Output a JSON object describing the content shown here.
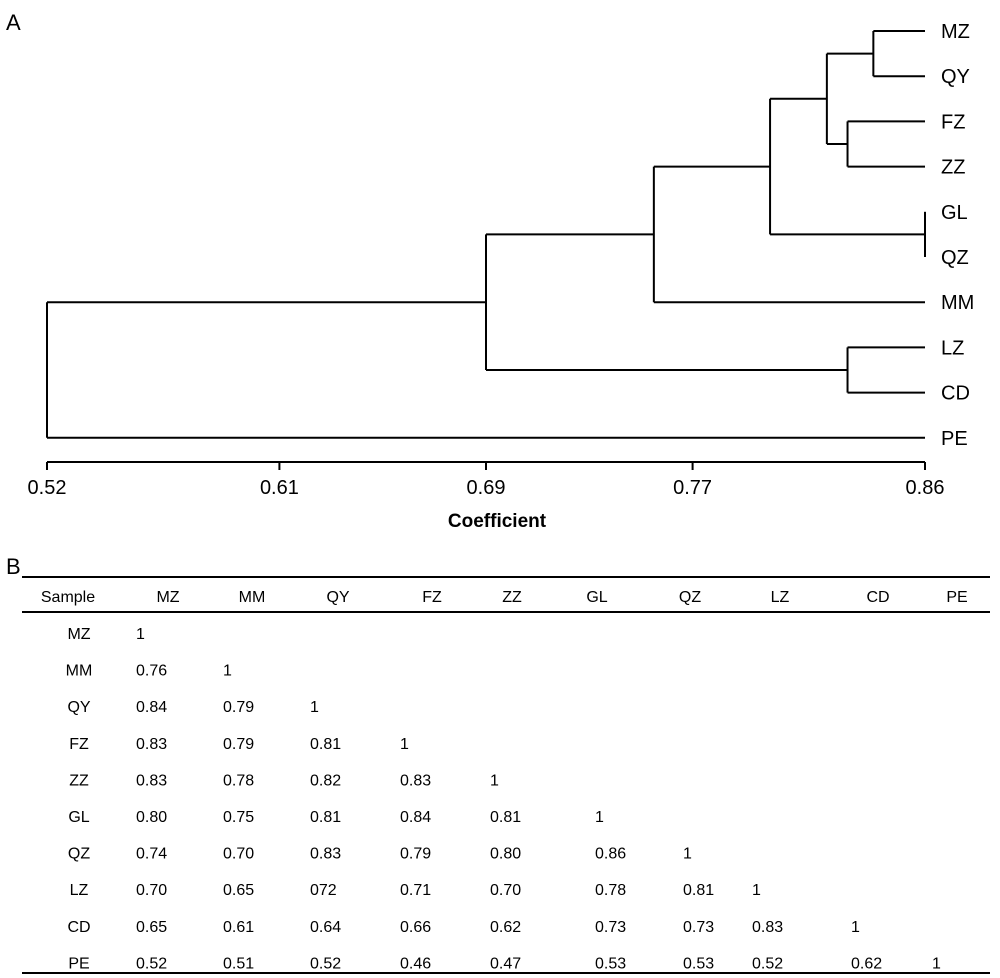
{
  "figure": {
    "panel_a_label": "A",
    "panel_b_label": "B"
  },
  "chart_data": [
    {
      "type": "dendrogram",
      "title": "",
      "xlabel": "Coefficient",
      "xlim": [
        0.52,
        0.86
      ],
      "xticks": [
        0.52,
        0.61,
        0.69,
        0.77,
        0.86
      ],
      "xtick_labels": [
        "0.52",
        "0.61",
        "0.69",
        "0.77",
        "0.86"
      ],
      "leaves": [
        "MZ",
        "QY",
        "FZ",
        "ZZ",
        "GL",
        "QZ",
        "MM",
        "LZ",
        "CD",
        "PE"
      ],
      "merges": [
        {
          "a": "GL",
          "b": "QZ",
          "height": 0.86
        },
        {
          "a": "MZ",
          "b": "QY",
          "height": 0.84
        },
        {
          "a": "FZ",
          "b": "ZZ",
          "height": 0.83
        },
        {
          "a": "LZ",
          "b": "CD",
          "height": 0.83
        },
        {
          "a": "MZ-QY",
          "b": "FZ-ZZ",
          "height": 0.822
        },
        {
          "a": "MZ-QY-FZ-ZZ",
          "b": "GL-QZ",
          "height": 0.8
        },
        {
          "a": "MZ-QY-FZ-ZZ-GL-QZ",
          "b": "MM",
          "height": 0.755
        },
        {
          "a": "MZ-QY-FZ-ZZ-GL-QZ-MM",
          "b": "LZ-CD",
          "height": 0.69
        },
        {
          "a": "MZ-QY-FZ-ZZ-GL-QZ-MM-LZ-CD",
          "b": "PE",
          "height": 0.52
        }
      ]
    },
    {
      "type": "table",
      "columns": [
        "Sample",
        "MZ",
        "MM",
        "QY",
        "FZ",
        "ZZ",
        "GL",
        "QZ",
        "LZ",
        "CD",
        "PE"
      ],
      "rows": [
        [
          "MZ",
          "1"
        ],
        [
          "MM",
          "0.76",
          "1"
        ],
        [
          "QY",
          "0.84",
          "0.79",
          "1"
        ],
        [
          "FZ",
          "0.83",
          "0.79",
          "0.81",
          "1"
        ],
        [
          "ZZ",
          "0.83",
          "0.78",
          "0.82",
          "0.83",
          "1"
        ],
        [
          "GL",
          "0.80",
          "0.75",
          "0.81",
          "0.84",
          "0.81",
          "1"
        ],
        [
          "QZ",
          "0.74",
          "0.70",
          "0.83",
          "0.79",
          "0.80",
          "0.86",
          "1"
        ],
        [
          "LZ",
          "0.70",
          "0.65",
          "072",
          "0.71",
          "0.70",
          "0.78",
          "0.81",
          "1"
        ],
        [
          "CD",
          "0.65",
          "0.61",
          "0.64",
          "0.66",
          "0.62",
          "0.73",
          "0.73",
          "0.83",
          "1"
        ],
        [
          "PE",
          "0.52",
          "0.51",
          "0.52",
          "0.46",
          "0.47",
          "0.53",
          "0.53",
          "0.52",
          "0.62",
          "1"
        ]
      ]
    }
  ]
}
